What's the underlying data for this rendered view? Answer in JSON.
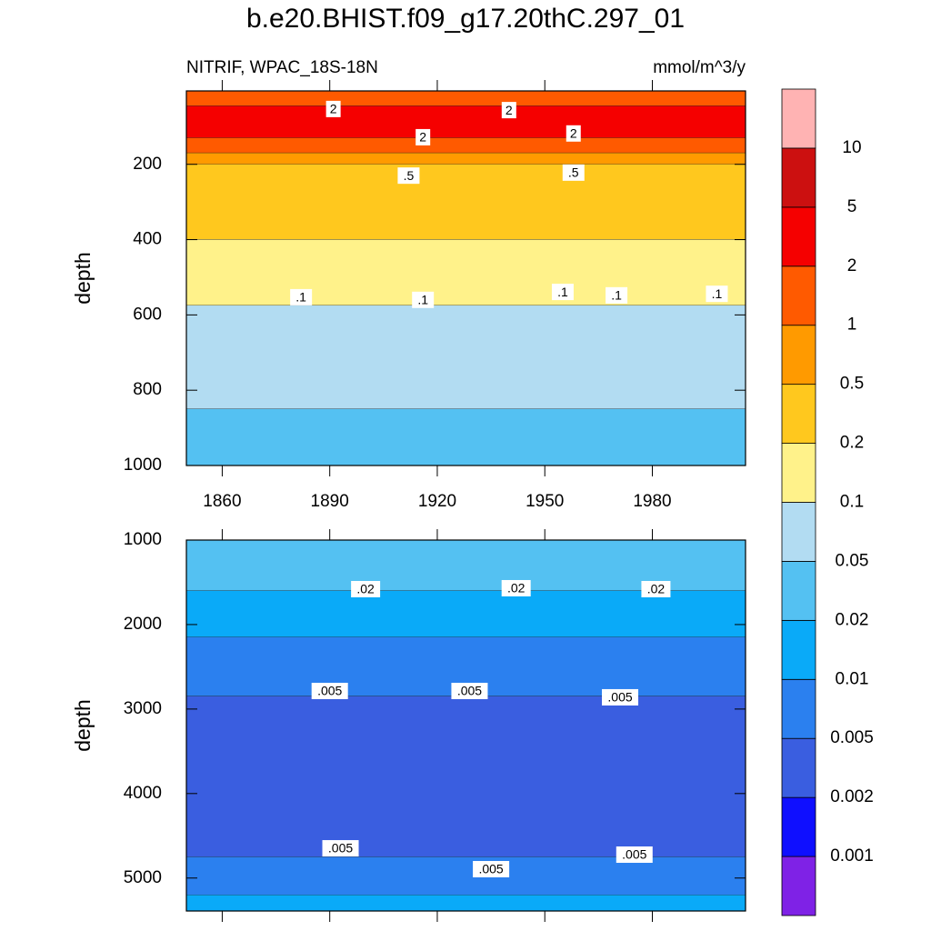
{
  "chart_data": {
    "type": "contour",
    "title": "b.e20.BHIST.f09_g17.20thC.297_01",
    "subtitle": "NITRIF, WPAC_18S-18N",
    "units": "mmol/m^3/y",
    "colorbar": {
      "levels": [
        0.001,
        0.002,
        0.005,
        0.01,
        0.02,
        0.05,
        0.1,
        0.2,
        0.5,
        1,
        2,
        5,
        10
      ],
      "colors": [
        "#7f22e6",
        "#0f0fff",
        "#3a5ee0",
        "#2b80ef",
        "#0aaaf8",
        "#54c1f2",
        "#b2dcf2",
        "#fff28a",
        "#ffc81e",
        "#ff9a00",
        "#ff5a00",
        "#f50000",
        "#cc1010",
        "#ffb3b3"
      ]
    },
    "panels": [
      {
        "ylabel": "depth",
        "xlim": [
          1850,
          2006
        ],
        "xticks": [
          1860,
          1890,
          1920,
          1950,
          1980
        ],
        "ylim": [
          1000,
          5
        ],
        "yticks": [
          200,
          400,
          600,
          800,
          1000
        ],
        "bands": [
          {
            "from": 5,
            "to": 45,
            "color": "#ff5a00"
          },
          {
            "from": 45,
            "to": 130,
            "color": "#f50000"
          },
          {
            "from": 130,
            "to": 170,
            "color": "#ff5a00"
          },
          {
            "from": 170,
            "to": 200,
            "color": "#ff9a00"
          },
          {
            "from": 200,
            "to": 400,
            "color": "#ffc81e"
          },
          {
            "from": 400,
            "to": 575,
            "color": "#fff28a"
          },
          {
            "from": 575,
            "to": 850,
            "color": "#b2dcf2"
          },
          {
            "from": 850,
            "to": 1000,
            "color": "#54c1f2"
          }
        ],
        "contour_labels": [
          {
            "text": "2",
            "x": 1891,
            "depth": 53
          },
          {
            "text": "2",
            "x": 1940,
            "depth": 56
          },
          {
            "text": "2",
            "x": 1916,
            "depth": 128
          },
          {
            "text": "2",
            "x": 1958,
            "depth": 118
          },
          {
            "text": ".5",
            "x": 1912,
            "depth": 230
          },
          {
            "text": ".5",
            "x": 1958,
            "depth": 222
          },
          {
            "text": ".1",
            "x": 1882,
            "depth": 553
          },
          {
            "text": ".1",
            "x": 1916,
            "depth": 560
          },
          {
            "text": ".1",
            "x": 1955,
            "depth": 539
          },
          {
            "text": ".1",
            "x": 1970,
            "depth": 548
          },
          {
            "text": ".1",
            "x": 1998,
            "depth": 544
          }
        ]
      },
      {
        "ylabel": "depth",
        "xlim": [
          1850,
          2006
        ],
        "xticks": [
          1860,
          1890,
          1920,
          1950,
          1980
        ],
        "ylim": [
          5390,
          1000
        ],
        "yticks": [
          1000,
          2000,
          3000,
          4000,
          5000
        ],
        "bands": [
          {
            "from": 1000,
            "to": 1600,
            "color": "#54c1f2"
          },
          {
            "from": 1600,
            "to": 2150,
            "color": "#0aaaf8"
          },
          {
            "from": 2150,
            "to": 2850,
            "color": "#2b80ef"
          },
          {
            "from": 2850,
            "to": 4750,
            "color": "#3a5ee0"
          },
          {
            "from": 4750,
            "to": 5200,
            "color": "#2b80ef"
          },
          {
            "from": 5200,
            "to": 5390,
            "color": "#0aaaf8"
          }
        ],
        "contour_labels": [
          {
            "text": ".02",
            "x": 1900,
            "depth": 1581
          },
          {
            "text": ".02",
            "x": 1942,
            "depth": 1570
          },
          {
            "text": ".02",
            "x": 1981,
            "depth": 1581
          },
          {
            "text": ".005",
            "x": 1890,
            "depth": 2786
          },
          {
            "text": ".005",
            "x": 1929,
            "depth": 2786
          },
          {
            "text": ".005",
            "x": 1971,
            "depth": 2861
          },
          {
            "text": ".005",
            "x": 1893,
            "depth": 4648
          },
          {
            "text": ".005",
            "x": 1935,
            "depth": 4895
          },
          {
            "text": ".005",
            "x": 1975,
            "depth": 4723
          }
        ]
      }
    ]
  }
}
